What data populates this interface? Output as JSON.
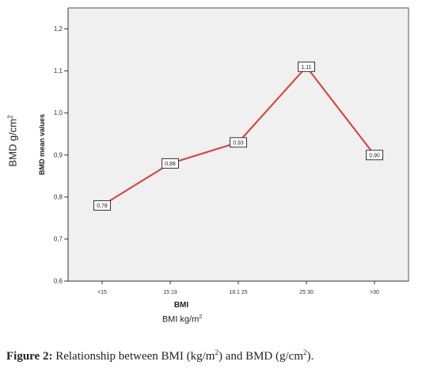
{
  "chart_data": {
    "type": "line",
    "categories": [
      "<15",
      "15-19",
      "18.1-25",
      "25-30",
      ">30"
    ],
    "category_labels": [
      "<15",
      "15 19",
      "18.1 25",
      "25 30",
      ">30"
    ],
    "values": [
      0.78,
      0.88,
      0.93,
      1.11,
      0.9
    ],
    "data_labels": [
      "0,78",
      "0,88",
      "0,93",
      "1,11",
      "0,90"
    ],
    "ylim": [
      0.6,
      1.25
    ],
    "y_ticks": [
      0.6,
      0.7,
      0.8,
      0.9,
      1.0,
      1.1,
      1.2
    ],
    "y_tick_labels": [
      "0,6",
      "0,7",
      "0,8",
      "0,9",
      "1,0",
      "1,1",
      "1,2"
    ],
    "ylabel": "BMD mean values",
    "xlabel": "BMI",
    "line_color": "#e03a32",
    "plot_background": "#f0f0f0",
    "grid": false
  },
  "outer_labels": {
    "y_prefix": "BMD g/cm",
    "y_sup": "2",
    "x_prefix": "BMI kg/m",
    "x_sup": "2"
  },
  "caption": {
    "figure": "Figure 2:",
    "t1": " Relationship between BMI (kg/m",
    "s1": "2",
    "t2": ") and BMD (g/cm",
    "s2": "2",
    "t3": ")."
  }
}
